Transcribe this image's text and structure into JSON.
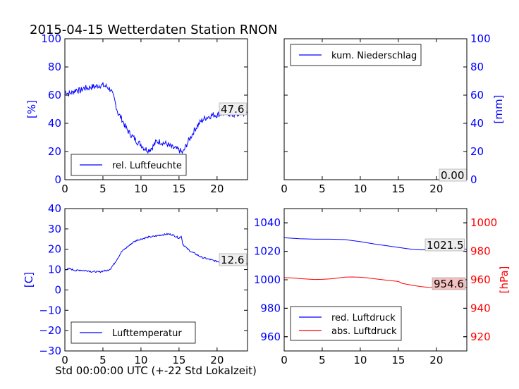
{
  "title": "2015-04-15 Wetterdaten Station RNON",
  "xlabel": "Std 00:00:00 UTC (+-22 Std Lokalzeit)",
  "colors": {
    "blue": "#0000ff",
    "red": "#ff0000",
    "axis": "#000000"
  },
  "chart_data": [
    {
      "id": "humidity",
      "type": "line",
      "ylabel": "[%]",
      "ylabel_color": "#0000ff",
      "xlim": [
        0,
        24
      ],
      "ylim": [
        0,
        100
      ],
      "xticks": [
        0,
        5,
        10,
        15,
        20
      ],
      "yticks": [
        0,
        20,
        40,
        60,
        80,
        100
      ],
      "tick_color": "#0000ff",
      "axis_side": "left",
      "legend": "rel. Luftfeuchte",
      "legend_position": "lower-left",
      "last_value": "47.6",
      "series": [
        {
          "name": "rel. Luftfeuchte",
          "color": "#0000ff",
          "noise": 2.2,
          "x": [
            0,
            0.5,
            1,
            1.5,
            2,
            2.5,
            3,
            3.5,
            4,
            4.5,
            5,
            5.5,
            6,
            6.5,
            7,
            7.5,
            8,
            8.5,
            9,
            9.5,
            10,
            10.5,
            11,
            11.5,
            12,
            12.5,
            13,
            13.5,
            14,
            14.5,
            15,
            15.5,
            16,
            16.5,
            17,
            17.5,
            18,
            18.5,
            19,
            19.5,
            20,
            20.5,
            21,
            21.5,
            22,
            22.5,
            23,
            23.5,
            24
          ],
          "y": [
            63,
            61,
            62,
            64,
            63,
            65,
            65,
            66,
            66,
            67,
            67,
            66,
            64,
            57,
            47,
            43,
            37,
            33,
            30,
            27,
            25,
            22,
            21,
            23,
            27,
            27,
            26,
            25,
            23,
            22,
            21,
            19,
            25,
            30,
            35,
            39,
            42,
            44,
            45,
            46,
            46,
            47,
            47,
            47,
            46,
            46,
            47,
            47,
            48
          ]
        }
      ]
    },
    {
      "id": "precipitation",
      "type": "line",
      "ylabel": "[mm]",
      "ylabel_color": "#0000ff",
      "xlim": [
        0,
        24
      ],
      "ylim": [
        0,
        100
      ],
      "xticks": [
        0,
        5,
        10,
        15,
        20
      ],
      "yticks": [
        0,
        20,
        40,
        60,
        80,
        100
      ],
      "tick_color": "#0000ff",
      "axis_side": "right",
      "legend": "kum. Niederschlag",
      "legend_position": "upper-left",
      "last_value": "0.00",
      "series": [
        {
          "name": "kum. Niederschlag",
          "color": "#0000ff",
          "noise": 0,
          "x": [
            0,
            24
          ],
          "y": [
            0,
            0
          ]
        }
      ]
    },
    {
      "id": "temperature",
      "type": "line",
      "ylabel": "[C]",
      "ylabel_color": "#0000ff",
      "xlim": [
        0,
        24
      ],
      "ylim": [
        -30,
        40
      ],
      "xticks": [
        0,
        5,
        10,
        15,
        20
      ],
      "yticks": [
        -30,
        -20,
        -10,
        0,
        10,
        20,
        30,
        40
      ],
      "tick_color": "#0000ff",
      "axis_side": "left",
      "legend": "Lufttemperatur",
      "legend_position": "lower-left",
      "last_value": "12.6",
      "series": [
        {
          "name": "Lufttemperatur",
          "color": "#0000ff",
          "noise": 0.4,
          "x": [
            0,
            0.5,
            1,
            1.5,
            2,
            2.5,
            3,
            3.5,
            4,
            4.5,
            5,
            5.5,
            6,
            6.5,
            7,
            7.5,
            8,
            8.5,
            9,
            9.5,
            10,
            10.5,
            11,
            11.5,
            12,
            12.5,
            13,
            13.5,
            14,
            14.5,
            15,
            15.3,
            15.5,
            16,
            16.5,
            17,
            17.5,
            18,
            18.5,
            19,
            19.5,
            20,
            20.5,
            21,
            21.5,
            22,
            22.5,
            23,
            23.5,
            24
          ],
          "y": [
            10,
            10.5,
            10,
            9.5,
            9.8,
            9.5,
            9.5,
            9,
            9,
            8.8,
            9.3,
            9.5,
            10.5,
            13,
            16,
            19,
            20.5,
            22,
            23.5,
            24.5,
            25,
            25.5,
            26,
            26.2,
            26.5,
            27,
            27.2,
            27.5,
            27.3,
            26.5,
            25.5,
            26.5,
            22.5,
            20.5,
            19,
            18,
            17,
            16,
            15.5,
            15,
            14.5,
            14,
            13.8,
            13.8,
            13.5,
            13.3,
            13,
            13,
            12.8,
            12.6
          ]
        }
      ]
    },
    {
      "id": "pressure",
      "type": "line",
      "xlim": [
        0,
        24
      ],
      "ylim_left": [
        950,
        1050
      ],
      "ylim_right": [
        910,
        1010
      ],
      "xticks": [
        0,
        5,
        10,
        15,
        20
      ],
      "yticks_left": [
        960,
        980,
        1000,
        1020,
        1040
      ],
      "yticks_right": [
        920,
        940,
        960,
        980,
        1000
      ],
      "tick_color_left": "#0000ff",
      "tick_color_right": "#ff0000",
      "ylabel": "[hPa]",
      "ylabel_color": "#ff0000",
      "legend": [
        "red. Luftdruck",
        "abs. Luftdruck"
      ],
      "legend_position": "lower-left",
      "last_value_red": "1021.5",
      "last_value_abs": "954.6",
      "series": [
        {
          "name": "red. Luftdruck",
          "color": "#0000ff",
          "axis": "left",
          "noise": 0,
          "x": [
            0,
            2,
            4,
            6,
            8,
            10,
            12,
            14,
            16,
            17,
            18,
            20,
            22,
            24
          ],
          "y": [
            1029.5,
            1028.8,
            1028.5,
            1028.5,
            1028.2,
            1026.8,
            1025,
            1023.5,
            1022,
            1021.3,
            1021,
            1021.3,
            1021.4,
            1021.5
          ]
        },
        {
          "name": "abs. Luftdruck",
          "color": "#ff0000",
          "axis": "right",
          "noise": 0,
          "x": [
            0,
            1,
            2,
            3,
            4,
            5,
            6,
            7,
            8,
            9,
            10,
            11,
            12,
            13,
            14,
            15,
            15.5,
            16,
            17,
            18,
            19,
            20,
            21,
            22,
            23,
            24
          ],
          "y": [
            961.5,
            961.3,
            960.9,
            960.5,
            960.2,
            960.3,
            960.6,
            961.2,
            961.9,
            962,
            961.8,
            961.3,
            960.6,
            960,
            959.4,
            958.8,
            957.5,
            957,
            956,
            955.2,
            954.7,
            954.6,
            954.9,
            954.9,
            954.8,
            954.6
          ]
        }
      ]
    }
  ]
}
